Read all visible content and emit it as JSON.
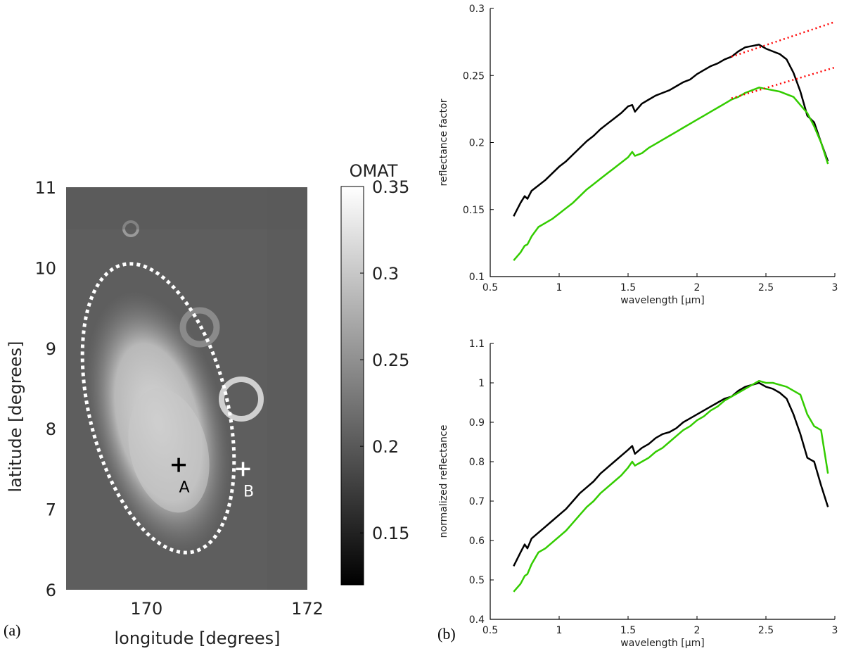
{
  "panel_labels": {
    "a": "(a)",
    "b": "(b)"
  },
  "colors": {
    "spectrum_A": "#000000",
    "spectrum_B": "#33cc00",
    "continuum": "#ff0000",
    "ellipse": "#ffffff"
  },
  "chart_data": [
    {
      "type": "heatmap",
      "panel": "(a)",
      "title": "",
      "xlabel": "longitude [degrees]",
      "ylabel": "latitude [degrees]",
      "xlim": [
        169,
        172
      ],
      "ylim": [
        6,
        11
      ],
      "xticks": [
        170,
        172
      ],
      "yticks": [
        6,
        7,
        8,
        9,
        10,
        11
      ],
      "colorbar": {
        "label": "OMAT",
        "range": [
          0.12,
          0.35
        ],
        "ticks": [
          0.15,
          0.2,
          0.25,
          0.3,
          0.35
        ],
        "colormap": "gray"
      },
      "markers": [
        {
          "label": "A",
          "lon": 170.4,
          "lat": 7.55
        },
        {
          "label": "B",
          "lon": 171.2,
          "lat": 7.5
        }
      ],
      "annotation": "dotted ellipse around high-OMAT region"
    },
    {
      "type": "line",
      "panel": "(b) top",
      "title": "",
      "xlabel": "wavelength [μm]",
      "ylabel": "reflectance factor",
      "xlim": [
        0.5,
        3
      ],
      "ylim": [
        0.1,
        0.3
      ],
      "xticks": [
        0.5,
        1,
        1.5,
        2,
        2.5,
        3
      ],
      "yticks": [
        0.1,
        0.15,
        0.2,
        0.25,
        0.3
      ],
      "series": [
        {
          "name": "A",
          "color": "black",
          "x": [
            0.67,
            0.72,
            0.75,
            0.77,
            0.8,
            0.85,
            0.9,
            0.95,
            1.0,
            1.05,
            1.1,
            1.15,
            1.2,
            1.25,
            1.3,
            1.35,
            1.4,
            1.45,
            1.5,
            1.53,
            1.55,
            1.6,
            1.65,
            1.7,
            1.75,
            1.8,
            1.85,
            1.9,
            1.95,
            2.0,
            2.05,
            2.1,
            2.15,
            2.2,
            2.25,
            2.3,
            2.35,
            2.4,
            2.45,
            2.5,
            2.55,
            2.6,
            2.65,
            2.7,
            2.75,
            2.8,
            2.85,
            2.9,
            2.95
          ],
          "y": [
            0.145,
            0.155,
            0.16,
            0.158,
            0.164,
            0.168,
            0.172,
            0.177,
            0.182,
            0.186,
            0.191,
            0.196,
            0.201,
            0.205,
            0.21,
            0.214,
            0.218,
            0.222,
            0.227,
            0.228,
            0.223,
            0.229,
            0.232,
            0.235,
            0.237,
            0.239,
            0.242,
            0.245,
            0.247,
            0.251,
            0.254,
            0.257,
            0.259,
            0.262,
            0.264,
            0.268,
            0.271,
            0.272,
            0.273,
            0.27,
            0.268,
            0.266,
            0.262,
            0.252,
            0.238,
            0.22,
            0.215,
            0.2,
            0.186
          ]
        },
        {
          "name": "B",
          "color": "green",
          "x": [
            0.67,
            0.72,
            0.75,
            0.77,
            0.8,
            0.85,
            0.9,
            0.95,
            1.0,
            1.05,
            1.1,
            1.15,
            1.2,
            1.25,
            1.3,
            1.35,
            1.4,
            1.45,
            1.5,
            1.53,
            1.55,
            1.6,
            1.65,
            1.7,
            1.75,
            1.8,
            1.85,
            1.9,
            1.95,
            2.0,
            2.05,
            2.1,
            2.15,
            2.2,
            2.25,
            2.3,
            2.35,
            2.4,
            2.45,
            2.5,
            2.55,
            2.6,
            2.65,
            2.7,
            2.75,
            2.8,
            2.85,
            2.9,
            2.95
          ],
          "y": [
            0.112,
            0.118,
            0.123,
            0.124,
            0.13,
            0.137,
            0.14,
            0.143,
            0.147,
            0.151,
            0.155,
            0.16,
            0.165,
            0.169,
            0.173,
            0.177,
            0.181,
            0.185,
            0.189,
            0.193,
            0.19,
            0.192,
            0.196,
            0.199,
            0.202,
            0.205,
            0.208,
            0.211,
            0.214,
            0.217,
            0.22,
            0.223,
            0.226,
            0.229,
            0.232,
            0.234,
            0.237,
            0.239,
            0.241,
            0.24,
            0.239,
            0.238,
            0.236,
            0.234,
            0.228,
            0.222,
            0.212,
            0.2,
            0.184
          ]
        },
        {
          "name": "continuum A",
          "color": "red",
          "style": "dotted",
          "x": [
            2.25,
            3.0
          ],
          "y": [
            0.264,
            0.29
          ]
        },
        {
          "name": "continuum B",
          "color": "red",
          "style": "dotted",
          "x": [
            2.25,
            3.0
          ],
          "y": [
            0.233,
            0.256
          ]
        }
      ]
    },
    {
      "type": "line",
      "panel": "(b) bottom",
      "title": "",
      "xlabel": "wavelength [μm]",
      "ylabel": "normalized reflectance",
      "xlim": [
        0.5,
        3
      ],
      "ylim": [
        0.4,
        1.1
      ],
      "xticks": [
        0.5,
        1,
        1.5,
        2,
        2.5,
        3
      ],
      "yticks": [
        0.4,
        0.5,
        0.6,
        0.7,
        0.8,
        0.9,
        1,
        1.1
      ],
      "series": [
        {
          "name": "A",
          "color": "black",
          "x": [
            0.67,
            0.72,
            0.75,
            0.77,
            0.8,
            0.85,
            0.9,
            0.95,
            1.0,
            1.05,
            1.1,
            1.15,
            1.2,
            1.25,
            1.3,
            1.35,
            1.4,
            1.45,
            1.5,
            1.53,
            1.55,
            1.6,
            1.65,
            1.7,
            1.75,
            1.8,
            1.85,
            1.9,
            1.95,
            2.0,
            2.05,
            2.1,
            2.15,
            2.2,
            2.25,
            2.3,
            2.35,
            2.4,
            2.45,
            2.5,
            2.55,
            2.6,
            2.65,
            2.7,
            2.75,
            2.8,
            2.85,
            2.9,
            2.95
          ],
          "y": [
            0.535,
            0.57,
            0.59,
            0.58,
            0.605,
            0.62,
            0.635,
            0.65,
            0.665,
            0.68,
            0.7,
            0.72,
            0.735,
            0.75,
            0.77,
            0.785,
            0.8,
            0.815,
            0.83,
            0.84,
            0.82,
            0.835,
            0.845,
            0.86,
            0.87,
            0.875,
            0.885,
            0.9,
            0.91,
            0.92,
            0.93,
            0.94,
            0.95,
            0.96,
            0.965,
            0.98,
            0.99,
            0.995,
            1.0,
            0.99,
            0.985,
            0.975,
            0.96,
            0.92,
            0.87,
            0.81,
            0.8,
            0.74,
            0.685
          ]
        },
        {
          "name": "B",
          "color": "green",
          "x": [
            0.67,
            0.72,
            0.75,
            0.77,
            0.8,
            0.85,
            0.9,
            0.95,
            1.0,
            1.05,
            1.1,
            1.15,
            1.2,
            1.25,
            1.3,
            1.35,
            1.4,
            1.45,
            1.5,
            1.53,
            1.55,
            1.6,
            1.65,
            1.7,
            1.75,
            1.8,
            1.85,
            1.9,
            1.95,
            2.0,
            2.05,
            2.1,
            2.15,
            2.2,
            2.25,
            2.3,
            2.35,
            2.4,
            2.45,
            2.5,
            2.55,
            2.6,
            2.65,
            2.7,
            2.75,
            2.8,
            2.85,
            2.9,
            2.95
          ],
          "y": [
            0.47,
            0.49,
            0.51,
            0.515,
            0.54,
            0.57,
            0.58,
            0.595,
            0.61,
            0.625,
            0.645,
            0.665,
            0.685,
            0.7,
            0.72,
            0.735,
            0.75,
            0.765,
            0.785,
            0.8,
            0.79,
            0.8,
            0.81,
            0.825,
            0.835,
            0.85,
            0.865,
            0.88,
            0.89,
            0.905,
            0.915,
            0.93,
            0.94,
            0.955,
            0.965,
            0.975,
            0.985,
            0.995,
            1.005,
            1.0,
            1.0,
            0.995,
            0.99,
            0.98,
            0.97,
            0.92,
            0.89,
            0.88,
            0.77
          ]
        }
      ]
    }
  ]
}
